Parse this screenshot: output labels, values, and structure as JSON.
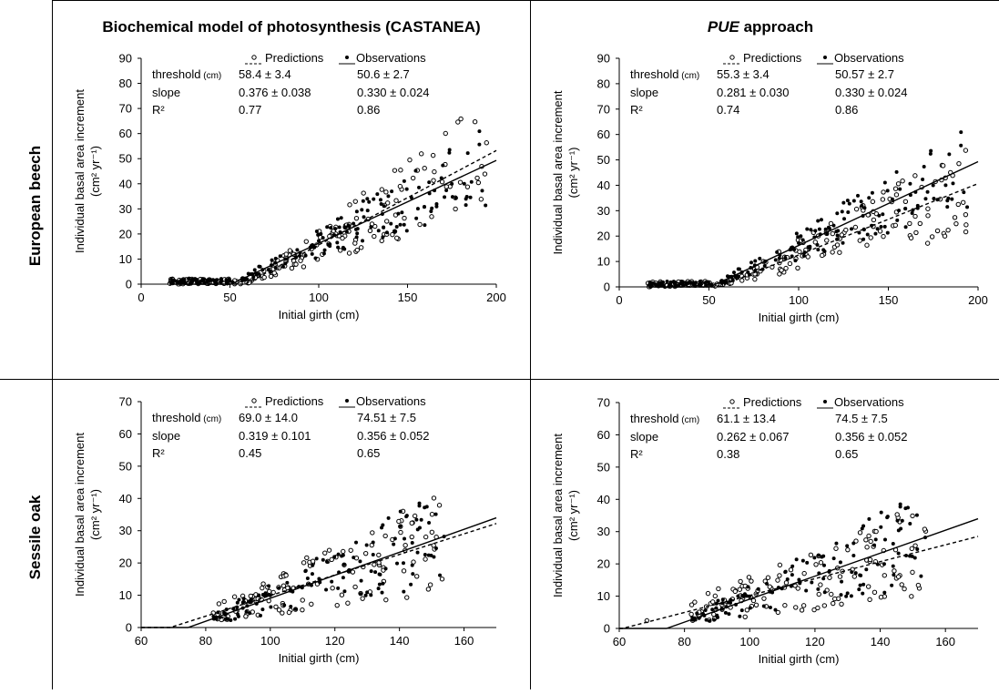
{
  "columns": [
    "Biochemical model of photosynthesis (CASTANEA)",
    "PUE approach"
  ],
  "column_emphasis": [
    "",
    "PUE"
  ],
  "rows": [
    "European beech",
    "Sessile oak"
  ],
  "legend": {
    "predictions": "Predictions",
    "observations": "Observations"
  },
  "stat_labels": {
    "threshold": "threshold",
    "threshold_unit": "(cm)",
    "slope": "slope",
    "r2": "R²"
  },
  "colors": {
    "line": "#000000",
    "background": "#ffffff"
  },
  "chart_data": [
    {
      "type": "scatter",
      "panel": "beech-castanea",
      "xlabel": "Initial girth (cm)",
      "ylabel": [
        "Individual basal area increment",
        "(cm² yr⁻¹)"
      ],
      "xlim": [
        0,
        200
      ],
      "ylim": [
        0,
        90
      ],
      "xticks": [
        0,
        50,
        100,
        150,
        200
      ],
      "yticks": [
        0,
        10,
        20,
        30,
        40,
        50,
        60,
        70,
        80,
        90
      ],
      "stats": {
        "threshold": [
          "58.4 ± 3.4",
          "50.6 ± 2.7"
        ],
        "slope": [
          "0.376 ± 0.038",
          "0.330 ± 0.024"
        ],
        "r2": [
          "0.77",
          "0.86"
        ]
      },
      "series": [
        {
          "name": "Predictions",
          "marker": "open-circle",
          "line": "dashed",
          "fit": {
            "threshold": 58.4,
            "slope": 0.376
          },
          "seed": 11,
          "noise": 0.28
        },
        {
          "name": "Observations",
          "marker": "filled-circle",
          "line": "solid",
          "fit": {
            "threshold": 50.6,
            "slope": 0.33
          },
          "seed": 23,
          "noise": 0.22
        }
      ]
    },
    {
      "type": "scatter",
      "panel": "beech-pue",
      "xlabel": "Initial girth (cm)",
      "ylabel": [
        "Individual basal area increment",
        "(cm² yr⁻¹)"
      ],
      "xlim": [
        0,
        200
      ],
      "ylim": [
        0,
        90
      ],
      "xticks": [
        0,
        50,
        100,
        150,
        200
      ],
      "yticks": [
        0,
        10,
        20,
        30,
        40,
        50,
        60,
        70,
        80,
        90
      ],
      "stats": {
        "threshold": [
          "55.3 ± 3.4",
          "50.57 ± 2.7"
        ],
        "slope": [
          "0.281 ± 0.030",
          "0.330 ± 0.024"
        ],
        "r2": [
          "0.74",
          "0.86"
        ]
      },
      "series": [
        {
          "name": "Predictions",
          "marker": "open-circle",
          "line": "dashed",
          "fit": {
            "threshold": 55.3,
            "slope": 0.281
          },
          "seed": 37,
          "noise": 0.3
        },
        {
          "name": "Observations",
          "marker": "filled-circle",
          "line": "solid",
          "fit": {
            "threshold": 50.57,
            "slope": 0.33
          },
          "seed": 23,
          "noise": 0.22
        }
      ]
    },
    {
      "type": "scatter",
      "panel": "oak-castanea",
      "xlabel": "Initial girth (cm)",
      "ylabel": [
        "Individual basal area increment",
        "(cm² yr⁻¹)"
      ],
      "xlim": [
        60,
        170
      ],
      "ylim": [
        0,
        70
      ],
      "xticks": [
        60,
        80,
        100,
        120,
        140,
        160
      ],
      "yticks": [
        0,
        10,
        20,
        30,
        40,
        50,
        60,
        70
      ],
      "stats": {
        "threshold": [
          "69.0 ± 14.0",
          "74.51 ± 7.5"
        ],
        "slope": [
          "0.319 ± 0.101",
          "0.356 ± 0.052"
        ],
        "r2": [
          "0.45",
          "0.65"
        ]
      },
      "series": [
        {
          "name": "Predictions",
          "marker": "open-circle",
          "line": "dashed",
          "fit": {
            "threshold": 69.0,
            "slope": 0.319
          },
          "seed": 53,
          "noise": 0.38
        },
        {
          "name": "Observations",
          "marker": "filled-circle",
          "line": "solid",
          "fit": {
            "threshold": 74.51,
            "slope": 0.356
          },
          "seed": 71,
          "noise": 0.34
        }
      ]
    },
    {
      "type": "scatter",
      "panel": "oak-pue",
      "xlabel": "Initial girth (cm)",
      "ylabel": [
        "Individual basal area increment",
        "(cm² yr⁻¹)"
      ],
      "xlim": [
        60,
        170
      ],
      "ylim": [
        0,
        70
      ],
      "xticks": [
        60,
        80,
        100,
        120,
        140,
        160
      ],
      "yticks": [
        0,
        10,
        20,
        30,
        40,
        50,
        60,
        70
      ],
      "stats": {
        "threshold": [
          "61.1 ± 13.4",
          "74.5 ± 7.5"
        ],
        "slope": [
          "0.262 ± 0.067",
          "0.356 ± 0.052"
        ],
        "r2": [
          "0.38",
          "0.65"
        ]
      },
      "series": [
        {
          "name": "Predictions",
          "marker": "open-circle",
          "line": "dashed",
          "fit": {
            "threshold": 61.1,
            "slope": 0.262
          },
          "seed": 89,
          "noise": 0.4
        },
        {
          "name": "Observations",
          "marker": "filled-circle",
          "line": "solid",
          "fit": {
            "threshold": 74.5,
            "slope": 0.356
          },
          "seed": 71,
          "noise": 0.34
        }
      ]
    }
  ]
}
